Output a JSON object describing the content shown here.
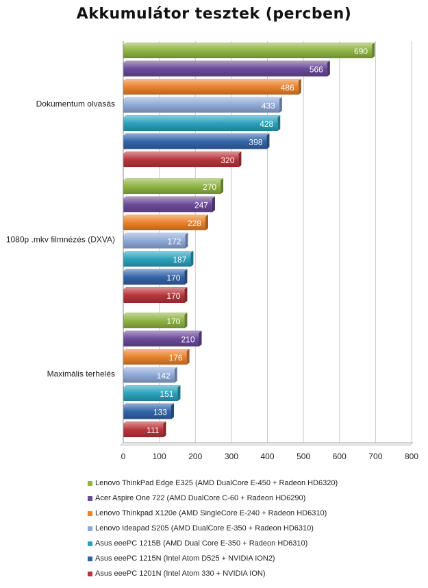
{
  "chart_data": {
    "type": "bar",
    "orientation": "horizontal",
    "title": "Akkumulátor tesztek (percben)",
    "categories": [
      "Dokumentum olvasás",
      "1080p .mkv filmnézés (DXVA)",
      "Maximális terhelés"
    ],
    "xlim": [
      0,
      800
    ],
    "xticks": [
      "0",
      "100",
      "200",
      "300",
      "400",
      "500",
      "600",
      "700",
      "800"
    ],
    "grid": true,
    "legend_position": "bottom",
    "series": [
      {
        "name": "Lenovo ThinkPad Edge E325 (AMD DualCore E-450 + Radeon HD6320)",
        "color": "#8fb443",
        "values": [
          690,
          270,
          170
        ]
      },
      {
        "name": "Acer Aspire One 722 (AMD DualCore C-60 + Radeon HD6290)",
        "color": "#6b4a9a",
        "values": [
          566,
          247,
          210
        ]
      },
      {
        "name": "Lenovo Thinkpad X120e (AMD SingleCore E-240 + Radeon HD6310)",
        "color": "#e9822b",
        "values": [
          486,
          228,
          176
        ]
      },
      {
        "name": "Lenovo Ideapad S205 (AMD DualCore E-350 + Radeon HD6310)",
        "color": "#8ea9d8",
        "values": [
          433,
          172,
          142
        ]
      },
      {
        "name": "Asus eeePC 1215B (AMD Dual Core E-350 + Radeon HD6310)",
        "color": "#2aa2bd",
        "values": [
          428,
          187,
          151
        ]
      },
      {
        "name": "Asus eeePC 1215N (Intel Atom D525 + NVIDIA ION2)",
        "color": "#3265a8",
        "values": [
          398,
          170,
          133
        ]
      },
      {
        "name": "Asus eeePC 1201N (Intel Atom 330 + NVIDIA ION)",
        "color": "#b8353b",
        "values": [
          320,
          170,
          111
        ]
      }
    ]
  }
}
